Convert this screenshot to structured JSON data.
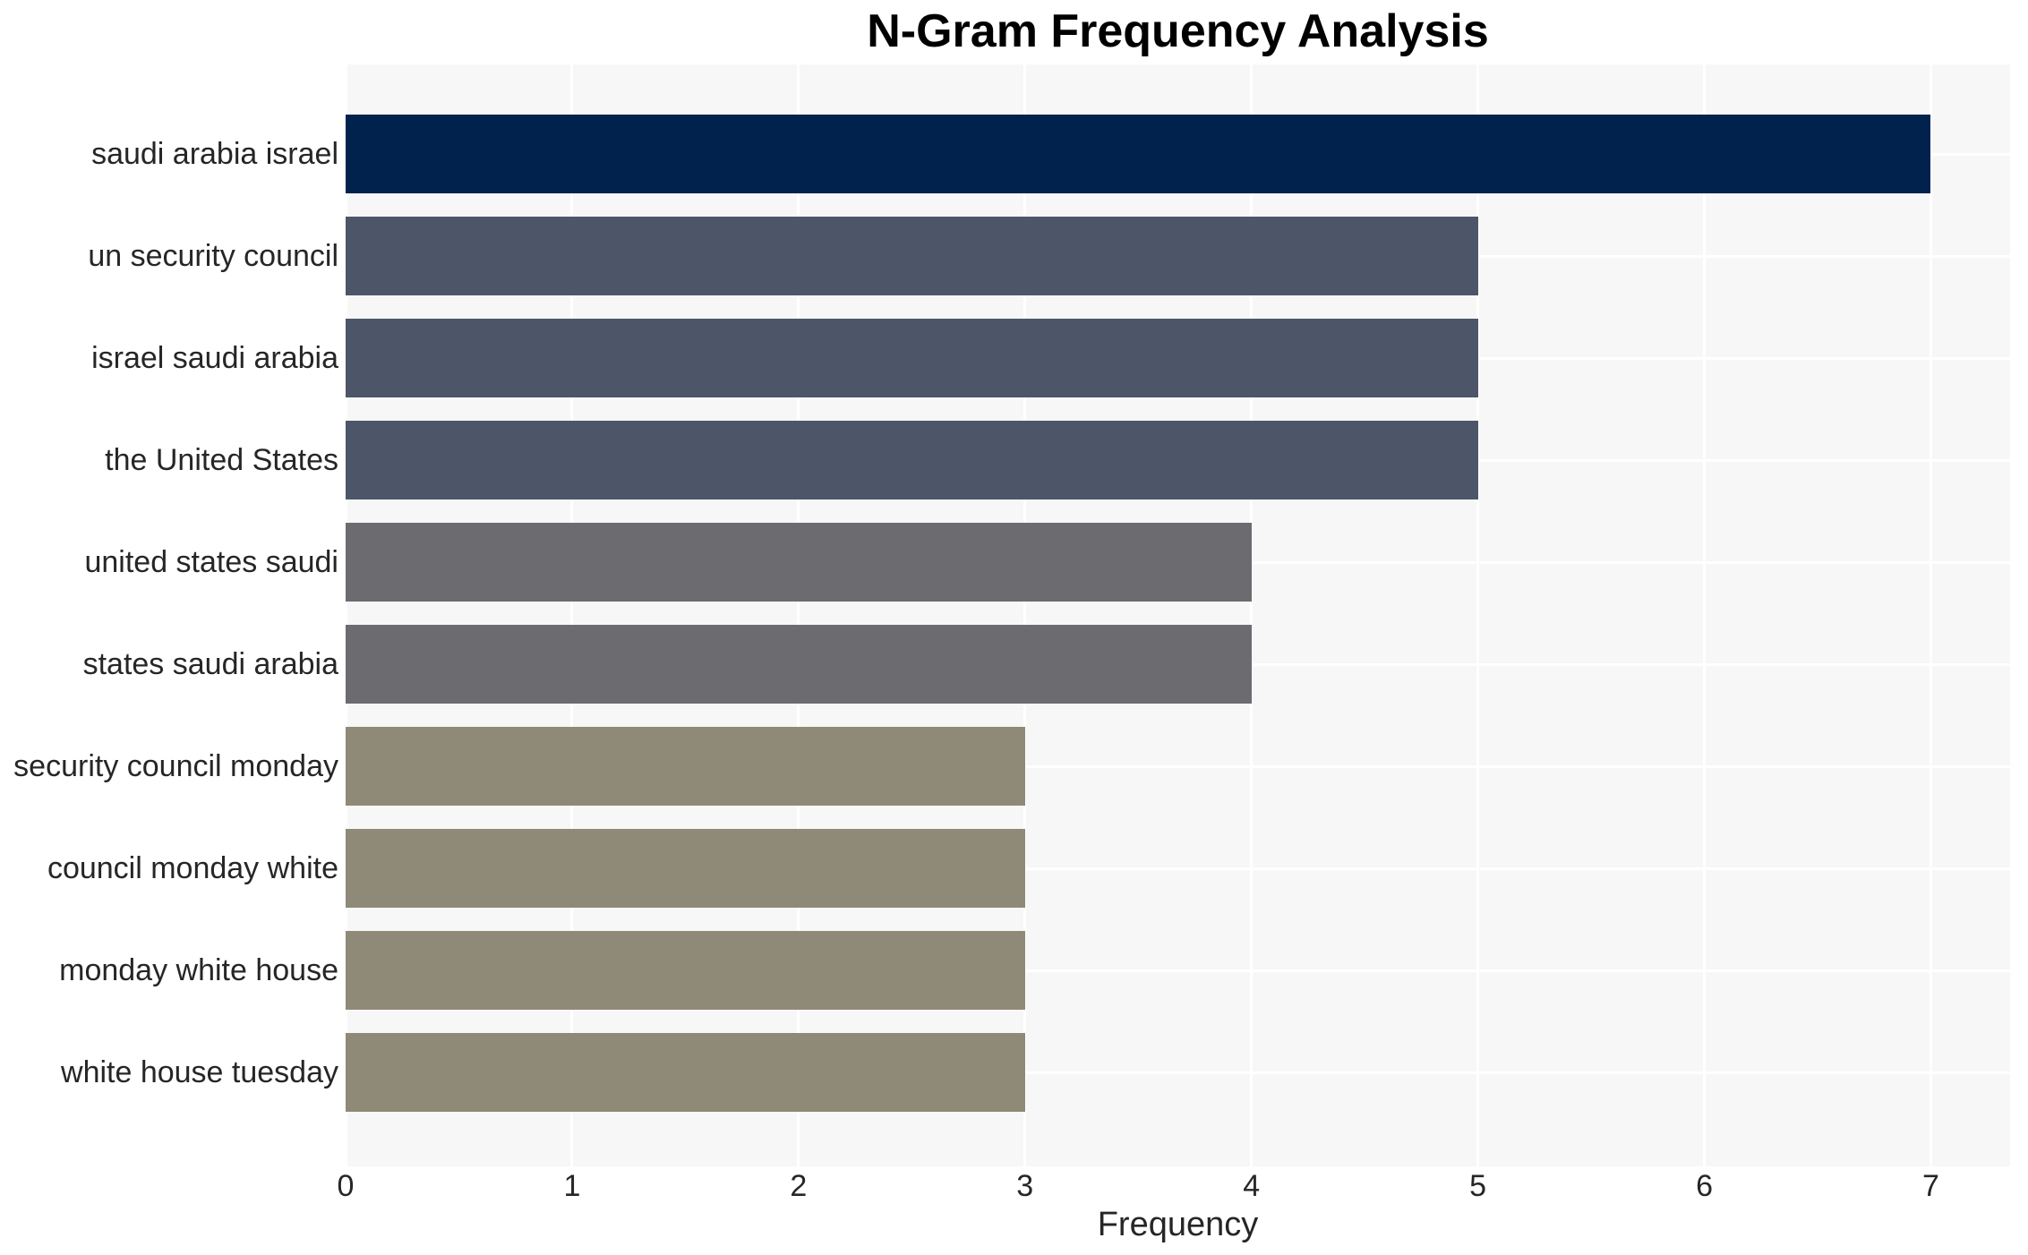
{
  "chart_data": {
    "type": "bar",
    "orientation": "horizontal",
    "title": "N-Gram Frequency Analysis",
    "xlabel": "Frequency",
    "ylabel": "",
    "categories": [
      "saudi arabia israel",
      "un security council",
      "israel saudi arabia",
      "the United States",
      "united states saudi",
      "states saudi arabia",
      "security council monday",
      "council monday white",
      "monday white house",
      "white house tuesday"
    ],
    "values": [
      7,
      5,
      5,
      5,
      4,
      4,
      3,
      3,
      3,
      3
    ],
    "bar_colors": [
      "#02224e",
      "#4d5669",
      "#4d5669",
      "#4d5669",
      "#6b6b70",
      "#6b6b70",
      "#8f8977",
      "#8f8977",
      "#8f8977",
      "#8f8977"
    ],
    "x_ticks": [
      "0",
      "1",
      "2",
      "3",
      "4",
      "5",
      "6",
      "7"
    ],
    "xlim": [
      0,
      7.35
    ],
    "grid": "on",
    "legend": "none",
    "colors": {
      "plot_background": "#f7f7f7",
      "page_background": "#ffffff",
      "gridline": "#ffffff",
      "text": "#262626",
      "title_text": "#000000"
    }
  }
}
